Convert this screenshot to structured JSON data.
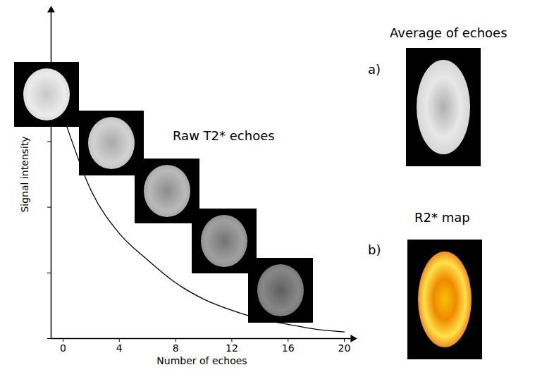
{
  "chart_data": {
    "type": "line",
    "xlabel": "Number of echoes",
    "ylabel": "Signal intensity",
    "x": [
      0,
      2,
      4,
      6,
      8,
      10,
      12,
      14,
      16,
      18,
      20
    ],
    "values": [
      68,
      45,
      32,
      24,
      17,
      12,
      8.6,
      6,
      4.3,
      2.8,
      2
    ],
    "color": "#000000",
    "xlim": [
      -0.85,
      20.6
    ],
    "ylim": [
      0,
      100
    ],
    "xticks": [
      0,
      4,
      8,
      12,
      16,
      20
    ],
    "yticks": [
      0,
      20,
      40,
      60,
      80
    ],
    "tick_labels": "x",
    "annotations": [
      "Raw T2* echoes"
    ]
  },
  "panels": [
    {
      "label": "a)",
      "title": "Average of echoes"
    },
    {
      "label": "b)",
      "title": "R2* map"
    }
  ]
}
